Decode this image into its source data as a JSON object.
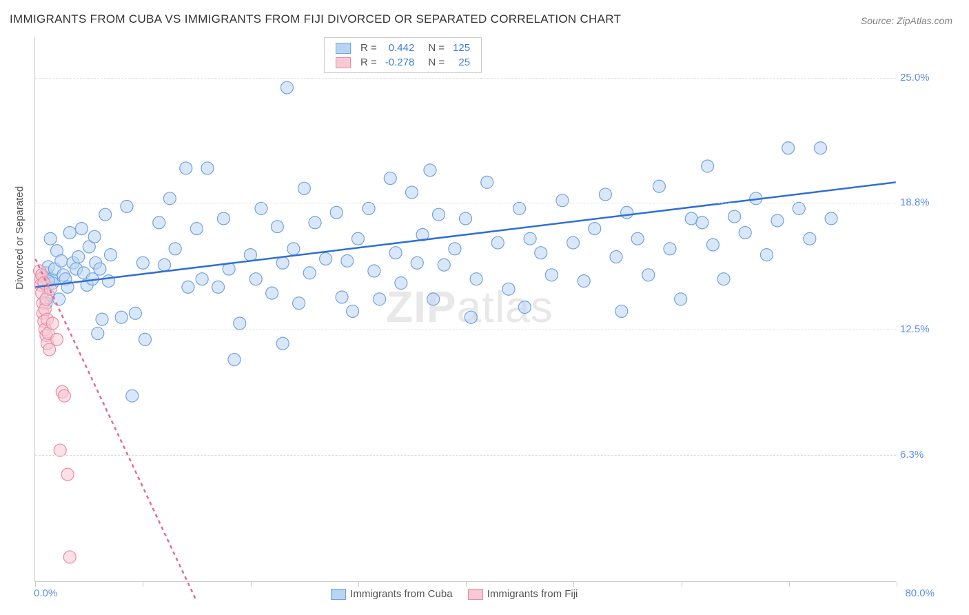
{
  "title": "IMMIGRANTS FROM CUBA VS IMMIGRANTS FROM FIJI DIVORCED OR SEPARATED CORRELATION CHART",
  "source": "Source: ZipAtlas.com",
  "y_axis_label": "Divorced or Separated",
  "watermark_bold": "ZIP",
  "watermark_rest": "atlas",
  "chart": {
    "type": "scatter",
    "background_color": "#ffffff",
    "grid_color": "#dddddd",
    "axis_color": "#cccccc",
    "marker_radius": 9,
    "marker_stroke_width": 1.2,
    "trend_line_width": 2.5,
    "xlim": [
      0,
      80
    ],
    "ylim": [
      0,
      27
    ],
    "x_tick_positions": [
      0,
      10,
      20,
      30,
      40,
      50,
      60,
      70,
      80
    ],
    "y_gridlines": [
      6.3,
      12.5,
      18.8,
      25.0
    ],
    "y_tick_labels": [
      "6.3%",
      "12.5%",
      "18.8%",
      "25.0%"
    ],
    "x_label_start": "0.0%",
    "x_label_end": "80.0%",
    "series": [
      {
        "name": "Immigrants from Cuba",
        "fill_color": "#b9d4f3",
        "stroke_color": "#6ea3e0",
        "fill_opacity": 0.55,
        "trend_color": "#2e6fd6",
        "trend_dash": "none",
        "trend": {
          "x1": 0,
          "y1": 14.6,
          "x2": 80,
          "y2": 19.8
        },
        "R": "0.442",
        "N": "125",
        "points": [
          [
            0.8,
            15.1
          ],
          [
            1.0,
            15.3
          ],
          [
            1.0,
            13.8
          ],
          [
            1.2,
            15.6
          ],
          [
            1.2,
            14.2
          ],
          [
            1.4,
            17.0
          ],
          [
            1.5,
            15.0
          ],
          [
            1.6,
            14.8
          ],
          [
            1.8,
            15.5
          ],
          [
            1.2,
            14.9
          ],
          [
            2.0,
            16.4
          ],
          [
            2.2,
            14.0
          ],
          [
            2.4,
            15.9
          ],
          [
            2.6,
            15.2
          ],
          [
            2.8,
            15.0
          ],
          [
            3.0,
            14.6
          ],
          [
            3.2,
            17.3
          ],
          [
            3.5,
            15.8
          ],
          [
            3.8,
            15.5
          ],
          [
            4.0,
            16.1
          ],
          [
            4.3,
            17.5
          ],
          [
            4.5,
            15.3
          ],
          [
            4.8,
            14.7
          ],
          [
            5.0,
            16.6
          ],
          [
            5.3,
            15.0
          ],
          [
            5.5,
            17.1
          ],
          [
            5.6,
            15.8
          ],
          [
            5.8,
            12.3
          ],
          [
            6.0,
            15.5
          ],
          [
            6.2,
            13.0
          ],
          [
            6.5,
            18.2
          ],
          [
            6.8,
            14.9
          ],
          [
            7.0,
            16.2
          ],
          [
            8.0,
            13.1
          ],
          [
            8.5,
            18.6
          ],
          [
            9.0,
            9.2
          ],
          [
            9.3,
            13.3
          ],
          [
            10.0,
            15.8
          ],
          [
            10.2,
            12.0
          ],
          [
            11.5,
            17.8
          ],
          [
            12.0,
            15.7
          ],
          [
            12.5,
            19.0
          ],
          [
            13.0,
            16.5
          ],
          [
            14.0,
            20.5
          ],
          [
            14.2,
            14.6
          ],
          [
            15.0,
            17.5
          ],
          [
            15.5,
            15.0
          ],
          [
            16.0,
            20.5
          ],
          [
            17.0,
            14.6
          ],
          [
            17.5,
            18.0
          ],
          [
            18.0,
            15.5
          ],
          [
            18.5,
            11.0
          ],
          [
            19.0,
            12.8
          ],
          [
            20.0,
            16.2
          ],
          [
            20.5,
            15.0
          ],
          [
            21.0,
            18.5
          ],
          [
            22.0,
            14.3
          ],
          [
            22.5,
            17.6
          ],
          [
            23.0,
            15.8
          ],
          [
            23.0,
            11.8
          ],
          [
            23.4,
            24.5
          ],
          [
            24.0,
            16.5
          ],
          [
            24.5,
            13.8
          ],
          [
            25.0,
            19.5
          ],
          [
            25.5,
            15.3
          ],
          [
            26.0,
            17.8
          ],
          [
            27.0,
            16.0
          ],
          [
            28.0,
            18.3
          ],
          [
            28.5,
            14.1
          ],
          [
            29.0,
            15.9
          ],
          [
            29.5,
            13.4
          ],
          [
            30.0,
            17.0
          ],
          [
            31.0,
            18.5
          ],
          [
            31.5,
            15.4
          ],
          [
            32.0,
            14.0
          ],
          [
            33.0,
            20.0
          ],
          [
            33.5,
            16.3
          ],
          [
            34.0,
            14.8
          ],
          [
            35.0,
            19.3
          ],
          [
            35.5,
            15.8
          ],
          [
            36.0,
            17.2
          ],
          [
            36.7,
            20.4
          ],
          [
            37.0,
            14.0
          ],
          [
            37.5,
            18.2
          ],
          [
            38.0,
            15.7
          ],
          [
            39.0,
            16.5
          ],
          [
            40.0,
            18.0
          ],
          [
            40.5,
            13.1
          ],
          [
            41.0,
            15.0
          ],
          [
            42.0,
            19.8
          ],
          [
            43.0,
            16.8
          ],
          [
            44.0,
            14.5
          ],
          [
            45.0,
            18.5
          ],
          [
            45.5,
            13.6
          ],
          [
            46.0,
            17.0
          ],
          [
            47.0,
            16.3
          ],
          [
            48.0,
            15.2
          ],
          [
            49.0,
            18.9
          ],
          [
            50.0,
            16.8
          ],
          [
            51.0,
            14.9
          ],
          [
            52.0,
            17.5
          ],
          [
            53.0,
            19.2
          ],
          [
            54.0,
            16.1
          ],
          [
            54.5,
            13.4
          ],
          [
            55.0,
            18.3
          ],
          [
            56.0,
            17.0
          ],
          [
            57.0,
            15.2
          ],
          [
            58.0,
            19.6
          ],
          [
            59.0,
            16.5
          ],
          [
            60.0,
            14.0
          ],
          [
            61.0,
            18.0
          ],
          [
            62.0,
            17.8
          ],
          [
            62.5,
            20.6
          ],
          [
            63.0,
            16.7
          ],
          [
            64.0,
            15.0
          ],
          [
            65.0,
            18.1
          ],
          [
            66.0,
            17.3
          ],
          [
            67.0,
            19.0
          ],
          [
            68.0,
            16.2
          ],
          [
            69.0,
            17.9
          ],
          [
            70.0,
            21.5
          ],
          [
            71.0,
            18.5
          ],
          [
            72.0,
            17.0
          ],
          [
            73.0,
            21.5
          ],
          [
            74.0,
            18.0
          ]
        ]
      },
      {
        "name": "Immigrants from Fiji",
        "fill_color": "#f7c9d4",
        "stroke_color": "#e98ba2",
        "fill_opacity": 0.55,
        "trend_color": "#e86a8a",
        "trend_dash": "5,5",
        "trend": {
          "x1": 0,
          "y1": 16.0,
          "x2": 15,
          "y2": -1.0
        },
        "R": "-0.278",
        "N": "25",
        "points": [
          [
            0.4,
            15.4
          ],
          [
            0.5,
            15.0
          ],
          [
            0.5,
            14.7
          ],
          [
            0.6,
            15.2
          ],
          [
            0.6,
            14.3
          ],
          [
            0.7,
            13.8
          ],
          [
            0.7,
            13.3
          ],
          [
            0.8,
            14.8
          ],
          [
            0.8,
            12.9
          ],
          [
            0.9,
            13.5
          ],
          [
            0.9,
            12.5
          ],
          [
            1.0,
            14.0
          ],
          [
            1.0,
            12.2
          ],
          [
            1.1,
            13.0
          ],
          [
            1.1,
            11.8
          ],
          [
            1.2,
            12.3
          ],
          [
            1.3,
            11.5
          ],
          [
            1.4,
            14.5
          ],
          [
            1.6,
            12.8
          ],
          [
            2.0,
            12.0
          ],
          [
            2.5,
            9.4
          ],
          [
            2.7,
            9.2
          ],
          [
            2.3,
            6.5
          ],
          [
            3.0,
            5.3
          ],
          [
            3.2,
            1.2
          ]
        ]
      }
    ]
  },
  "legend_top_rows": [
    {
      "swatch_fill": "#b9d4f3",
      "swatch_border": "#6ea3e0",
      "R_label": "R =",
      "R": "0.442",
      "N_label": "N =",
      "N": "125"
    },
    {
      "swatch_fill": "#f7c9d4",
      "swatch_border": "#e98ba2",
      "R_label": "R =",
      "R": "-0.278",
      "N_label": "N =",
      "N": "25"
    }
  ],
  "legend_bottom": [
    {
      "swatch_fill": "#b9d4f3",
      "swatch_border": "#6ea3e0",
      "label": "Immigrants from Cuba"
    },
    {
      "swatch_fill": "#f7c9d4",
      "swatch_border": "#e98ba2",
      "label": "Immigrants from Fiji"
    }
  ]
}
